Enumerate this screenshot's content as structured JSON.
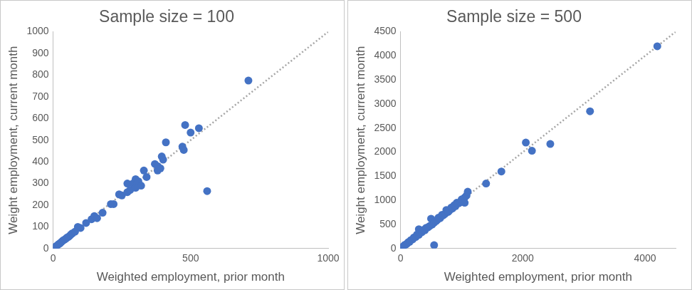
{
  "chart_data": [
    {
      "type": "scatter",
      "title": "Sample size = 100",
      "xlabel": "Weighted employment, prior month",
      "ylabel": "Weight employment, current month",
      "xlim": [
        0,
        1000
      ],
      "xticks": [
        0,
        500,
        1000
      ],
      "ylim": [
        0,
        1000
      ],
      "yticks": [
        0,
        100,
        200,
        300,
        400,
        500,
        600,
        700,
        800,
        900,
        1000
      ],
      "grid": false,
      "series": [
        {
          "color": "#4472c4",
          "marker": "circle",
          "x": [
            0,
            5,
            10,
            15,
            20,
            25,
            30,
            35,
            40,
            45,
            50,
            55,
            60,
            65,
            70,
            80,
            90,
            100,
            120,
            140,
            150,
            160,
            180,
            210,
            220,
            240,
            250,
            270,
            270,
            280,
            290,
            300,
            300,
            305,
            310,
            320,
            330,
            340,
            370,
            380,
            380,
            390,
            395,
            400,
            410,
            470,
            475,
            480,
            500,
            530,
            560,
            710
          ],
          "values": [
            0,
            5,
            10,
            14,
            20,
            24,
            30,
            36,
            40,
            44,
            50,
            53,
            58,
            65,
            70,
            78,
            100,
            95,
            118,
            135,
            150,
            140,
            165,
            205,
            205,
            250,
            245,
            260,
            300,
            270,
            300,
            320,
            280,
            300,
            310,
            290,
            360,
            330,
            390,
            380,
            360,
            370,
            425,
            410,
            490,
            470,
            455,
            570,
            535,
            555,
            265,
            775
          ]
        },
        {
          "type": "line",
          "line_style": "dotted",
          "color": "#a6a6a6",
          "x": [
            0,
            1000
          ],
          "values": [
            0,
            1000
          ]
        }
      ]
    },
    {
      "type": "scatter",
      "title": "Sample size = 500",
      "xlabel": "Weighted employment, prior month",
      "ylabel": "Weight employment, current month",
      "xlim": [
        0,
        4500
      ],
      "xticks": [
        0,
        2000,
        4000
      ],
      "ylim": [
        0,
        4500
      ],
      "yticks": [
        0,
        500,
        1000,
        1500,
        2000,
        2500,
        3000,
        3500,
        4000,
        4500
      ],
      "grid": false,
      "series": [
        {
          "color": "#4472c4",
          "marker": "circle",
          "x": [
            0,
            10,
            20,
            30,
            50,
            70,
            90,
            110,
            130,
            150,
            170,
            200,
            220,
            250,
            270,
            300,
            300,
            320,
            350,
            380,
            400,
            420,
            450,
            480,
            500,
            520,
            550,
            550,
            580,
            600,
            620,
            650,
            680,
            700,
            730,
            750,
            780,
            800,
            830,
            850,
            880,
            900,
            920,
            950,
            980,
            1000,
            1000,
            1050,
            1050,
            1080,
            1100,
            1400,
            1650,
            2050,
            2150,
            2450,
            3100,
            4200
          ],
          "values": [
            0,
            10,
            18,
            32,
            48,
            75,
            85,
            105,
            135,
            140,
            175,
            190,
            230,
            240,
            290,
            285,
            400,
            330,
            340,
            390,
            380,
            430,
            440,
            470,
            620,
            500,
            540,
            70,
            570,
            590,
            640,
            630,
            700,
            690,
            720,
            800,
            760,
            790,
            850,
            830,
            900,
            880,
            950,
            940,
            960,
            980,
            1020,
            1060,
            950,
            1100,
            1180,
            1350,
            1600,
            2200,
            2030,
            2170,
            2850,
            4200
          ]
        },
        {
          "type": "line",
          "line_style": "dotted",
          "color": "#a6a6a6",
          "x": [
            0,
            4500
          ],
          "values": [
            0,
            4500
          ]
        }
      ]
    }
  ]
}
